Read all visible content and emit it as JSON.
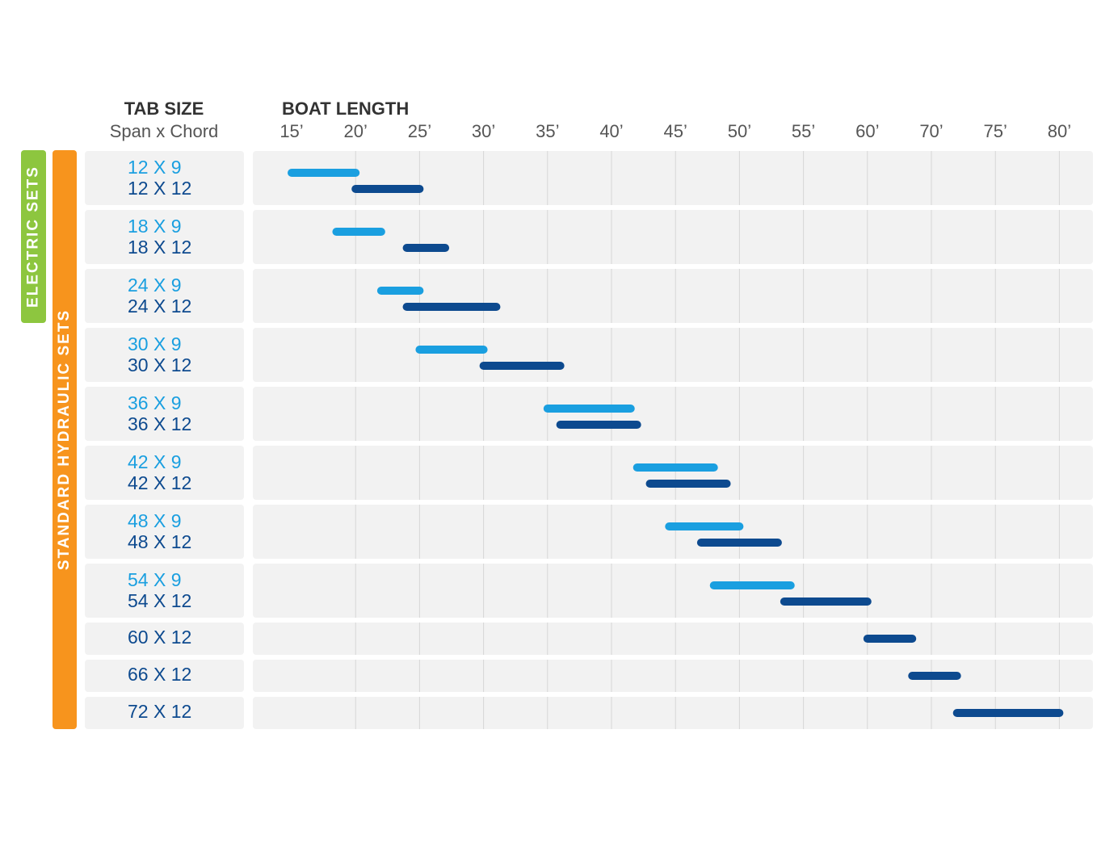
{
  "chart_data": {
    "type": "range",
    "header": {
      "tab_size": "TAB SIZE",
      "span_chord": "Span x Chord",
      "boat_length": "BOAT LENGTH"
    },
    "side_labels": [
      {
        "text": "ELECTRIC SETS",
        "color": "#8dc63f"
      },
      {
        "text": "STANDARD HYDRAULIC SETS",
        "color": "#f7941d"
      }
    ],
    "xticks": [
      {
        "value": 15,
        "label": "15’"
      },
      {
        "value": 20,
        "label": "20’"
      },
      {
        "value": 25,
        "label": "25’"
      },
      {
        "value": 30,
        "label": "30’"
      },
      {
        "value": 35,
        "label": "35’"
      },
      {
        "value": 40,
        "label": "40’"
      },
      {
        "value": 45,
        "label": "45’"
      },
      {
        "value": 50,
        "label": "50’"
      },
      {
        "value": 55,
        "label": "55’"
      },
      {
        "value": 60,
        "label": "60’"
      },
      {
        "value": 70,
        "label": "70’"
      },
      {
        "value": 75,
        "label": "75’"
      },
      {
        "value": 80,
        "label": "80’"
      }
    ],
    "rows": [
      {
        "bars": [
          {
            "name": "12 X 9",
            "color": "#1a9fe0",
            "start": 15,
            "end": 20
          },
          {
            "name": "12 X 12",
            "color": "#0d4a8f",
            "start": 20,
            "end": 25
          }
        ]
      },
      {
        "bars": [
          {
            "name": "18 X 9",
            "color": "#1a9fe0",
            "start": 18.5,
            "end": 22
          },
          {
            "name": "18 X 12",
            "color": "#0d4a8f",
            "start": 24,
            "end": 27
          }
        ]
      },
      {
        "bars": [
          {
            "name": "24 X 9",
            "color": "#1a9fe0",
            "start": 22,
            "end": 25
          },
          {
            "name": "24 X 12",
            "color": "#0d4a8f",
            "start": 24,
            "end": 31
          }
        ]
      },
      {
        "bars": [
          {
            "name": "30 X 9",
            "color": "#1a9fe0",
            "start": 25,
            "end": 30
          },
          {
            "name": "30 X 12",
            "color": "#0d4a8f",
            "start": 30,
            "end": 36
          }
        ]
      },
      {
        "bars": [
          {
            "name": "36 X 9",
            "color": "#1a9fe0",
            "start": 35,
            "end": 41.5
          },
          {
            "name": "36 X 12",
            "color": "#0d4a8f",
            "start": 36,
            "end": 42
          }
        ]
      },
      {
        "bars": [
          {
            "name": "42 X 9",
            "color": "#1a9fe0",
            "start": 42,
            "end": 48
          },
          {
            "name": "42 X 12",
            "color": "#0d4a8f",
            "start": 43,
            "end": 49
          }
        ]
      },
      {
        "bars": [
          {
            "name": "48 X 9",
            "color": "#1a9fe0",
            "start": 44.5,
            "end": 50
          },
          {
            "name": "48 X 12",
            "color": "#0d4a8f",
            "start": 47,
            "end": 53
          }
        ]
      },
      {
        "bars": [
          {
            "name": "54 X 9",
            "color": "#1a9fe0",
            "start": 48,
            "end": 54
          },
          {
            "name": "54 X 12",
            "color": "#0d4a8f",
            "start": 53.5,
            "end": 60
          }
        ]
      },
      {
        "bars": [
          {
            "name": "60 X 12",
            "color": "#0d4a8f",
            "start": 60,
            "end": 67
          }
        ]
      },
      {
        "bars": [
          {
            "name": "66 X 12",
            "color": "#0d4a8f",
            "start": 67,
            "end": 72
          }
        ]
      },
      {
        "bars": [
          {
            "name": "72 X 12",
            "color": "#0d4a8f",
            "start": 72,
            "end": 80
          }
        ]
      }
    ]
  }
}
